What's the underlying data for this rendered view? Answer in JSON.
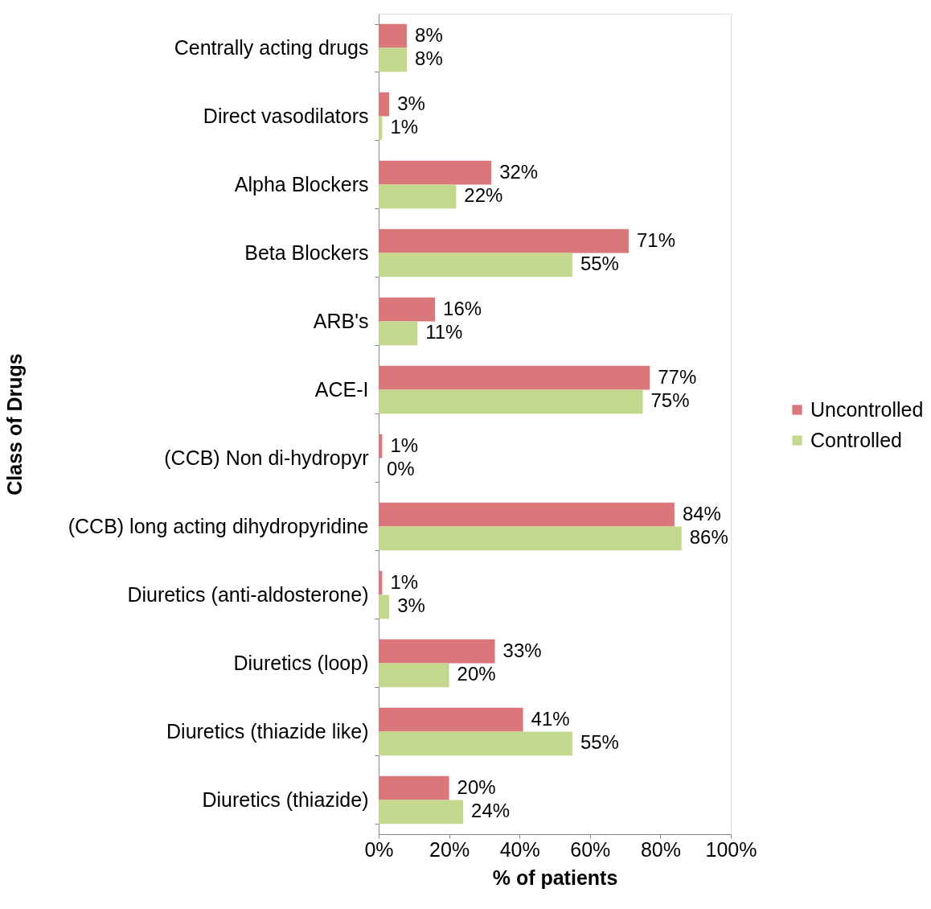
{
  "chart_data": {
    "type": "bar",
    "orientation": "horizontal",
    "xlabel": "% of patients",
    "ylabel": "Class of Drugs",
    "categories": [
      "Centrally acting drugs",
      "Direct vasodilators",
      "Alpha Blockers",
      "Beta Blockers",
      "ARB's",
      "ACE-I",
      "(CCB) Non di-hydropyr",
      "(CCB) long acting dihydropyridine",
      "Diuretics (anti-aldosterone)",
      "Diuretics (loop)",
      "Diuretics (thiazide like)",
      "Diuretics (thiazide)"
    ],
    "series": [
      {
        "name": "Uncontrolled",
        "color": "#d9777b",
        "values": [
          8,
          3,
          32,
          71,
          16,
          77,
          1,
          84,
          1,
          33,
          41,
          20
        ],
        "value_labels": [
          "8%",
          "3%",
          "32%",
          "71%",
          "16%",
          "77%",
          "1%",
          "84%",
          "1%",
          "33%",
          "41%",
          "20%"
        ]
      },
      {
        "name": "Controlled",
        "color": "#c3d88c",
        "values": [
          8,
          1,
          22,
          55,
          11,
          75,
          0,
          86,
          3,
          20,
          55,
          24
        ],
        "value_labels": [
          "8%",
          "1%",
          "22%",
          "55%",
          "11%",
          "75%",
          "0%",
          "86%",
          "3%",
          "20%",
          "55%",
          "24%"
        ]
      }
    ],
    "xlim": [
      0,
      100
    ],
    "xticks": [
      {
        "value": 0,
        "label": "0%"
      },
      {
        "value": 20,
        "label": "20%"
      },
      {
        "value": 40,
        "label": "40%"
      },
      {
        "value": 60,
        "label": "60%"
      },
      {
        "value": 80,
        "label": "80%"
      },
      {
        "value": 100,
        "label": "100%"
      }
    ],
    "grid": false,
    "legend": "right"
  }
}
